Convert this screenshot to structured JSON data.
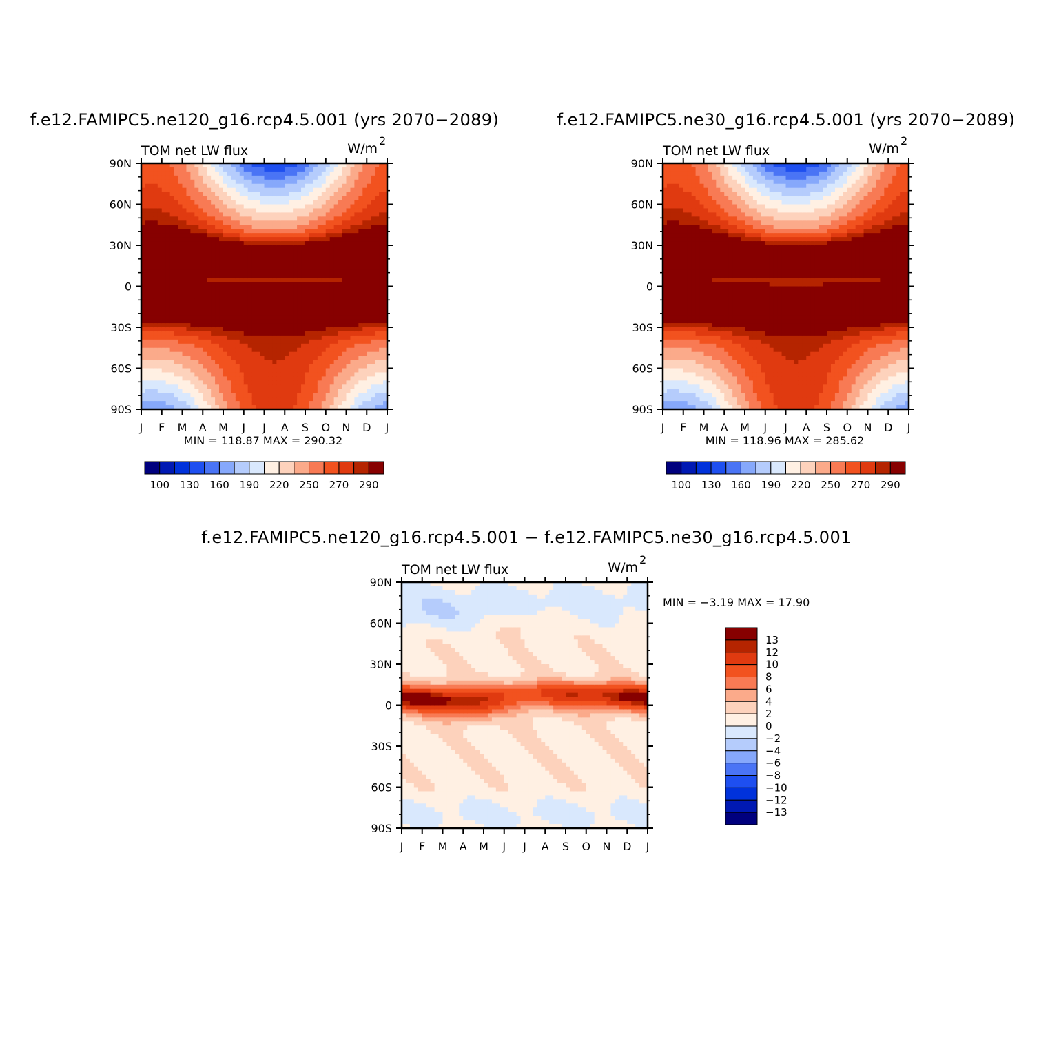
{
  "colors": {
    "frame": "#000000",
    "background": "#ffffff",
    "palette": [
      "#00007e",
      "#0019b3",
      "#0032db",
      "#1e4ff0",
      "#4a74f5",
      "#86a8fb",
      "#b5ccfc",
      "#d9e8fd",
      "#fff0e3",
      "#fdd2bc",
      "#fbaa8a",
      "#f87a54",
      "#f2521f",
      "#e03a10",
      "#b52400",
      "#870000"
    ]
  },
  "chart_data": [
    {
      "id": "model1",
      "type": "heatmap",
      "title": "f.e12.FAMIPC5.ne120_g16.rcp4.5.001 (yrs 2070−2089)",
      "variable_label": "TOM net LW flux",
      "units_base": "W/m",
      "units_exp": "2",
      "x_tick_labels": [
        "J",
        "F",
        "M",
        "A",
        "M",
        "J",
        "J",
        "A",
        "S",
        "O",
        "N",
        "D",
        "J"
      ],
      "y_tick_labels": [
        "90N",
        "60N",
        "30N",
        "0",
        "30S",
        "60S",
        "90S"
      ],
      "y_range": [
        -90,
        90
      ],
      "stats": "MIN =  118.87  MAX =  290.32",
      "min": 118.87,
      "max": 290.32,
      "colorbar_levels": [
        100,
        110,
        120,
        130,
        140,
        150,
        160,
        170,
        180,
        190,
        200,
        210,
        220,
        230,
        240,
        250,
        260,
        270,
        280,
        290
      ],
      "colorbar_tick_labels": [
        "100",
        "130",
        "160",
        "190",
        "220",
        "250",
        "270",
        "290"
      ],
      "colorbar_label_slots": [
        1,
        3,
        5,
        7,
        9,
        11,
        13,
        15
      ]
    },
    {
      "id": "model2",
      "type": "heatmap",
      "title": "f.e12.FAMIPC5.ne30_g16.rcp4.5.001 (yrs 2070−2089)",
      "variable_label": "TOM net LW flux",
      "units_base": "W/m",
      "units_exp": "2",
      "x_tick_labels": [
        "J",
        "F",
        "M",
        "A",
        "M",
        "J",
        "J",
        "A",
        "S",
        "O",
        "N",
        "D",
        "J"
      ],
      "y_tick_labels": [
        "90N",
        "60N",
        "30N",
        "0",
        "30S",
        "60S",
        "90S"
      ],
      "y_range": [
        -90,
        90
      ],
      "stats": "MIN =  118.96  MAX =  285.62",
      "min": 118.96,
      "max": 285.62,
      "colorbar_tick_labels": [
        "100",
        "130",
        "160",
        "190",
        "220",
        "250",
        "270",
        "290"
      ],
      "colorbar_label_slots": [
        1,
        3,
        5,
        7,
        9,
        11,
        13,
        15
      ]
    },
    {
      "id": "difference",
      "type": "heatmap",
      "title": "f.e12.FAMIPC5.ne120_g16.rcp4.5.001 − f.e12.FAMIPC5.ne30_g16.rcp4.5.001",
      "variable_label": "TOM net LW flux",
      "units_base": "W/m",
      "units_exp": "2",
      "x_tick_labels": [
        "J",
        "F",
        "M",
        "A",
        "M",
        "J",
        "J",
        "A",
        "S",
        "O",
        "N",
        "D",
        "J"
      ],
      "y_tick_labels": [
        "90N",
        "60N",
        "30N",
        "0",
        "30S",
        "60S",
        "90S"
      ],
      "y_range": [
        -90,
        90
      ],
      "stats": "MIN =   −3.19  MAX =   17.90",
      "min": -3.19,
      "max": 17.9,
      "colorbar_levels": [
        -13,
        -12,
        -10,
        -8,
        -6,
        -4,
        -2,
        0,
        2,
        4,
        6,
        8,
        10,
        12,
        13
      ],
      "colorbar_tick_labels": [
        "13",
        "12",
        "10",
        "8",
        "6",
        "4",
        "2",
        "0",
        "−2",
        "−4",
        "−6",
        "−8",
        "−10",
        "−12",
        "−13"
      ]
    }
  ]
}
